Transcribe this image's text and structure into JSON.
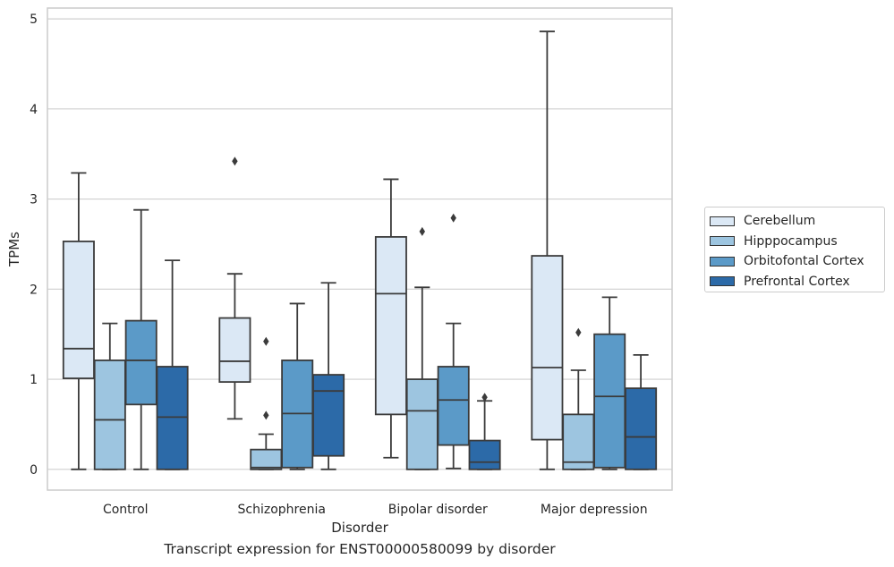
{
  "chart_data": {
    "type": "box",
    "caption": "Transcript expression for ENST00000580099 by disorder",
    "xlabel": "Disorder",
    "ylabel": "TPMs",
    "ylim": [
      -0.23,
      5.12
    ],
    "yticks": [
      0,
      1,
      2,
      3,
      4,
      5
    ],
    "grid": true,
    "legend_position": "right",
    "categories": [
      "Control",
      "Schizophrenia",
      "Bipolar disorder",
      "Major depression"
    ],
    "series": [
      {
        "name": "Cerebellum",
        "color": "#dbe8f5",
        "boxes": [
          {
            "whislo": 0.0,
            "q1": 1.01,
            "med": 1.34,
            "q3": 2.53,
            "whishi": 3.29,
            "fliers": []
          },
          {
            "whislo": 0.56,
            "q1": 0.97,
            "med": 1.2,
            "q3": 1.68,
            "whishi": 2.17,
            "fliers": [
              3.42
            ]
          },
          {
            "whislo": 0.13,
            "q1": 0.61,
            "med": 1.95,
            "q3": 2.58,
            "whishi": 3.22,
            "fliers": []
          },
          {
            "whislo": 0.0,
            "q1": 0.33,
            "med": 1.13,
            "q3": 2.37,
            "whishi": 4.86,
            "fliers": []
          }
        ]
      },
      {
        "name": "Hipppocampus",
        "color": "#9dc5e0",
        "boxes": [
          {
            "whislo": 0.0,
            "q1": 0.0,
            "med": 0.55,
            "q3": 1.21,
            "whishi": 1.62,
            "fliers": []
          },
          {
            "whislo": 0.0,
            "q1": 0.0,
            "med": 0.02,
            "q3": 0.22,
            "whishi": 0.39,
            "fliers": [
              0.6,
              1.42
            ]
          },
          {
            "whislo": 0.0,
            "q1": 0.0,
            "med": 0.65,
            "q3": 1.0,
            "whishi": 2.02,
            "fliers": [
              2.64
            ]
          },
          {
            "whislo": 0.0,
            "q1": 0.0,
            "med": 0.08,
            "q3": 0.61,
            "whishi": 1.1,
            "fliers": [
              1.52
            ]
          }
        ]
      },
      {
        "name": "Orbitofontal Cortex",
        "color": "#5b9ac8",
        "boxes": [
          {
            "whislo": 0.0,
            "q1": 0.72,
            "med": 1.21,
            "q3": 1.65,
            "whishi": 2.88,
            "fliers": []
          },
          {
            "whislo": 0.0,
            "q1": 0.02,
            "med": 0.62,
            "q3": 1.21,
            "whishi": 1.84,
            "fliers": []
          },
          {
            "whislo": 0.01,
            "q1": 0.27,
            "med": 0.77,
            "q3": 1.14,
            "whishi": 1.62,
            "fliers": [
              2.79
            ]
          },
          {
            "whislo": 0.0,
            "q1": 0.02,
            "med": 0.81,
            "q3": 1.5,
            "whishi": 1.91,
            "fliers": []
          }
        ]
      },
      {
        "name": "Prefrontal Cortex",
        "color": "#2c6aa8",
        "boxes": [
          {
            "whislo": 0.0,
            "q1": 0.0,
            "med": 0.58,
            "q3": 1.14,
            "whishi": 2.32,
            "fliers": []
          },
          {
            "whislo": 0.0,
            "q1": 0.15,
            "med": 0.87,
            "q3": 1.05,
            "whishi": 2.07,
            "fliers": []
          },
          {
            "whislo": 0.0,
            "q1": 0.0,
            "med": 0.08,
            "q3": 0.32,
            "whishi": 0.76,
            "fliers": [
              0.8
            ]
          },
          {
            "whislo": 0.0,
            "q1": 0.0,
            "med": 0.36,
            "q3": 0.9,
            "whishi": 1.27,
            "fliers": []
          }
        ]
      }
    ]
  }
}
